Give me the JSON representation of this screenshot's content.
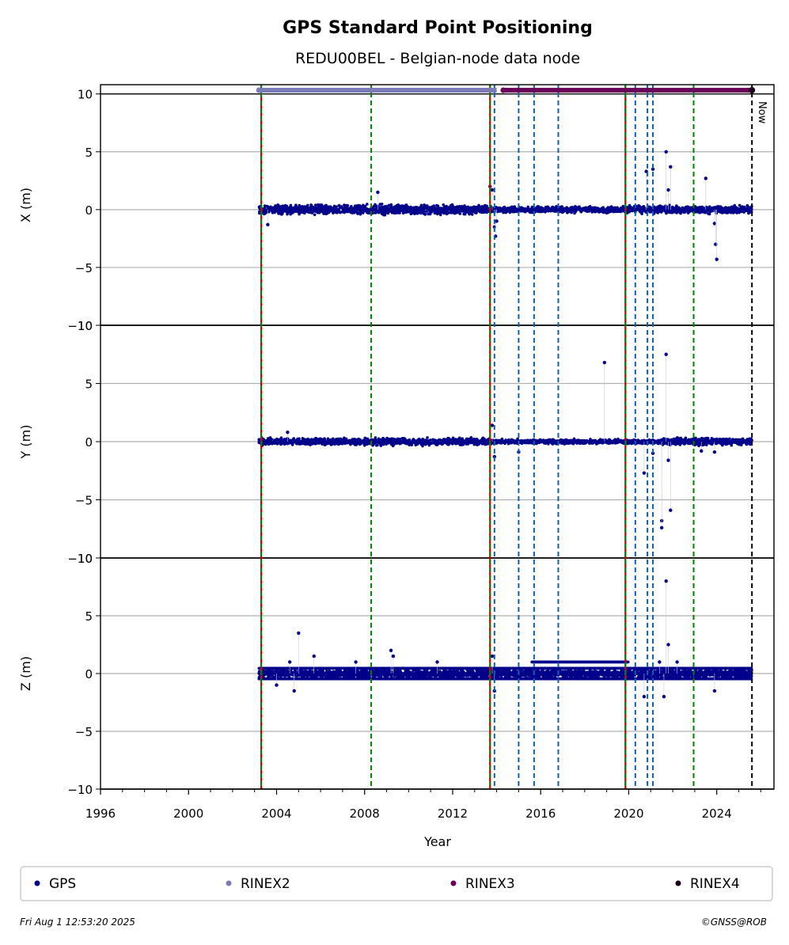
{
  "chart_data": {
    "type": "scatter",
    "title": "GPS Standard Point Positioning",
    "subtitle": "REDU00BEL - Belgian-node data node",
    "xlabel": "Year",
    "xlim": [
      1996,
      2026.6
    ],
    "x_ticks": [
      "1996",
      "2000",
      "2004",
      "2008",
      "2012",
      "2016",
      "2020",
      "2024"
    ],
    "y_ticks": [
      "10",
      "5",
      "0",
      "−5",
      "−10"
    ],
    "panels": [
      {
        "ylabel": "X (m)",
        "ylim": [
          -10,
          10.8
        ],
        "band": [
          {
            "x": [
              2003.2,
              2013.8
            ],
            "half_width": 0.55
          },
          {
            "x": [
              2013.8,
              2019.9
            ],
            "half_width": 0.35
          },
          {
            "x": [
              2019.9,
              2025.6
            ],
            "half_width": 0.45
          }
        ],
        "outliers": [
          {
            "x": 2003.6,
            "y": -1.3
          },
          {
            "x": 2013.7,
            "y": 2.0
          },
          {
            "x": 2013.8,
            "y": 1.7
          },
          {
            "x": 2013.9,
            "y": -1.5
          },
          {
            "x": 2013.95,
            "y": -2.3
          },
          {
            "x": 2014.0,
            "y": -1.0
          },
          {
            "x": 2020.8,
            "y": 3.3
          },
          {
            "x": 2021.1,
            "y": 3.5
          },
          {
            "x": 2021.7,
            "y": 5.0
          },
          {
            "x": 2021.9,
            "y": 3.7
          },
          {
            "x": 2021.8,
            "y": 1.7
          },
          {
            "x": 2023.5,
            "y": 2.7
          },
          {
            "x": 2023.9,
            "y": -1.2
          },
          {
            "x": 2023.95,
            "y": -3.0
          },
          {
            "x": 2024.0,
            "y": -4.3
          },
          {
            "x": 2008.6,
            "y": 1.5
          }
        ]
      },
      {
        "ylabel": "Y (m)",
        "ylim": [
          -10,
          10
        ],
        "band": [
          {
            "x": [
              2003.2,
              2013.8
            ],
            "half_width": 0.4
          },
          {
            "x": [
              2013.8,
              2021.5
            ],
            "half_width": 0.25
          },
          {
            "x": [
              2021.5,
              2025.6
            ],
            "half_width": 0.4
          }
        ],
        "outliers": [
          {
            "x": 2013.8,
            "y": 1.4
          },
          {
            "x": 2013.9,
            "y": -1.3
          },
          {
            "x": 2015.0,
            "y": -0.9
          },
          {
            "x": 2018.9,
            "y": 6.8
          },
          {
            "x": 2020.7,
            "y": -2.7
          },
          {
            "x": 2021.1,
            "y": -1.0
          },
          {
            "x": 2021.5,
            "y": -6.8
          },
          {
            "x": 2021.5,
            "y": -7.4
          },
          {
            "x": 2021.7,
            "y": 7.5
          },
          {
            "x": 2021.8,
            "y": -1.6
          },
          {
            "x": 2021.9,
            "y": -5.9
          },
          {
            "x": 2023.3,
            "y": -0.8
          },
          {
            "x": 2023.9,
            "y": -0.9
          },
          {
            "x": 2004.5,
            "y": 0.8
          }
        ]
      },
      {
        "ylabel": "Z (m)",
        "ylim": [
          -10,
          10
        ],
        "band": [
          {
            "x": [
              2003.2,
              2013.8
            ],
            "half_width": 0.5
          },
          {
            "x": [
              2013.8,
              2019.9
            ],
            "half_width": 0.5
          },
          {
            "x": [
              2019.9,
              2025.6
            ],
            "half_width": 0.5
          }
        ],
        "stripes": [
          {
            "x": [
              2003.2,
              2025.6
            ],
            "y": 0.45
          },
          {
            "x": [
              2003.2,
              2025.6
            ],
            "y": -0.45
          },
          {
            "x": [
              2003.2,
              2025.6
            ],
            "y": 0.0
          },
          {
            "x": [
              2015.6,
              2020.0
            ],
            "y": 1.0
          }
        ],
        "outliers": [
          {
            "x": 2005.0,
            "y": 3.5
          },
          {
            "x": 2005.7,
            "y": 1.5
          },
          {
            "x": 2009.2,
            "y": 2.0
          },
          {
            "x": 2009.3,
            "y": 1.5
          },
          {
            "x": 2004.0,
            "y": -1.0
          },
          {
            "x": 2004.8,
            "y": -1.5
          },
          {
            "x": 2004.6,
            "y": 1.0
          },
          {
            "x": 2013.8,
            "y": 1.5
          },
          {
            "x": 2013.9,
            "y": -1.5
          },
          {
            "x": 2020.7,
            "y": -2.0
          },
          {
            "x": 2021.4,
            "y": 1.0
          },
          {
            "x": 2021.6,
            "y": -2.0
          },
          {
            "x": 2021.7,
            "y": 8.0
          },
          {
            "x": 2021.8,
            "y": 2.5
          },
          {
            "x": 2022.2,
            "y": 1.0
          },
          {
            "x": 2023.9,
            "y": -1.5
          },
          {
            "x": 2007.6,
            "y": 1.0
          },
          {
            "x": 2011.3,
            "y": 1.0
          }
        ]
      }
    ],
    "top_bars": [
      {
        "name": "RINEX2",
        "x": [
          2003.2,
          2014.0
        ],
        "color": "#7b7bb8"
      },
      {
        "name": "RINEX3",
        "x": [
          2014.3,
          2025.6
        ],
        "color": "#6b005a"
      }
    ],
    "rinex4_marker": {
      "x": 2025.6
    },
    "event_lines": [
      {
        "x": 2003.3,
        "kind": "red-green"
      },
      {
        "x": 2008.3,
        "kind": "green"
      },
      {
        "x": 2013.7,
        "kind": "red-green"
      },
      {
        "x": 2013.9,
        "kind": "blue"
      },
      {
        "x": 2015.0,
        "kind": "blue"
      },
      {
        "x": 2015.7,
        "kind": "blue"
      },
      {
        "x": 2016.8,
        "kind": "blue"
      },
      {
        "x": 2019.85,
        "kind": "red-green"
      },
      {
        "x": 2020.3,
        "kind": "blue"
      },
      {
        "x": 2020.85,
        "kind": "blue"
      },
      {
        "x": 2021.1,
        "kind": "blue"
      },
      {
        "x": 2022.95,
        "kind": "green"
      },
      {
        "x": 2025.6,
        "kind": "now"
      }
    ],
    "now_label": "Now",
    "grid": true,
    "legend": [
      {
        "label": "GPS",
        "color": "#00008b"
      },
      {
        "label": "RINEX2",
        "color": "#7b7bb8"
      },
      {
        "label": "RINEX3",
        "color": "#6b005a"
      },
      {
        "label": "RINEX4",
        "color": "#1a001a"
      }
    ],
    "legend_placement": "bottom"
  },
  "footer": {
    "timestamp": "Fri Aug  1 12:53:20 2025",
    "credit": "©GNSS@ROB"
  },
  "colors": {
    "gps": "#00008b",
    "grid": "#b0b0b0",
    "red": "#d40000",
    "green": "#008000",
    "blue": "#1060b0"
  }
}
